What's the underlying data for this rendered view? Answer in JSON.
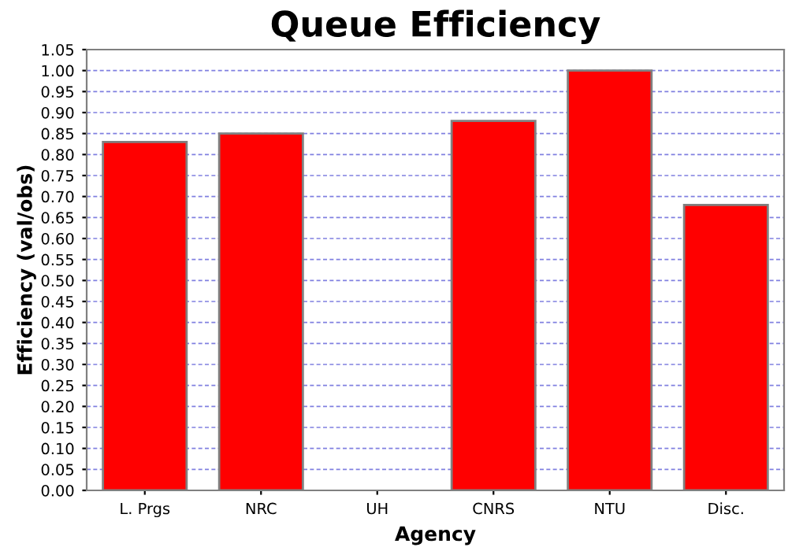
{
  "chart_data": {
    "type": "bar",
    "title": "Queue Efficiency",
    "xlabel": "Agency",
    "ylabel": "Efficiency (val/obs)",
    "categories": [
      "L. Prgs",
      "NRC",
      "UH",
      "CNRS",
      "NTU",
      "Disc."
    ],
    "values": [
      0.83,
      0.85,
      null,
      0.88,
      1.0,
      0.68
    ],
    "color": "#ff0000",
    "ylim": [
      0,
      1.05
    ],
    "yticks": [
      {
        "value": 0,
        "label": "0.00"
      },
      {
        "value": 0.05,
        "label": "0.05"
      },
      {
        "value": 0.1,
        "label": "0.10"
      },
      {
        "value": 0.15,
        "label": "0.15"
      },
      {
        "value": 0.2,
        "label": "0.20"
      },
      {
        "value": 0.25,
        "label": "0.25"
      },
      {
        "value": 0.3,
        "label": "0.30"
      },
      {
        "value": 0.35,
        "label": "0.35"
      },
      {
        "value": 0.4,
        "label": "0.40"
      },
      {
        "value": 0.45,
        "label": "0.45"
      },
      {
        "value": 0.5,
        "label": "0.50"
      },
      {
        "value": 0.55,
        "label": "0.55"
      },
      {
        "value": 0.6,
        "label": "0.60"
      },
      {
        "value": 0.65,
        "label": "0.65"
      },
      {
        "value": 0.7,
        "label": "0.70"
      },
      {
        "value": 0.75,
        "label": "0.75"
      },
      {
        "value": 0.8,
        "label": "0.80"
      },
      {
        "value": 0.85,
        "label": "0.85"
      },
      {
        "value": 0.9,
        "label": "0.90"
      },
      {
        "value": 0.95,
        "label": "0.95"
      },
      {
        "value": 1.0,
        "label": "1.00"
      },
      {
        "value": 1.05,
        "label": "1.05"
      }
    ],
    "grid": "y"
  }
}
